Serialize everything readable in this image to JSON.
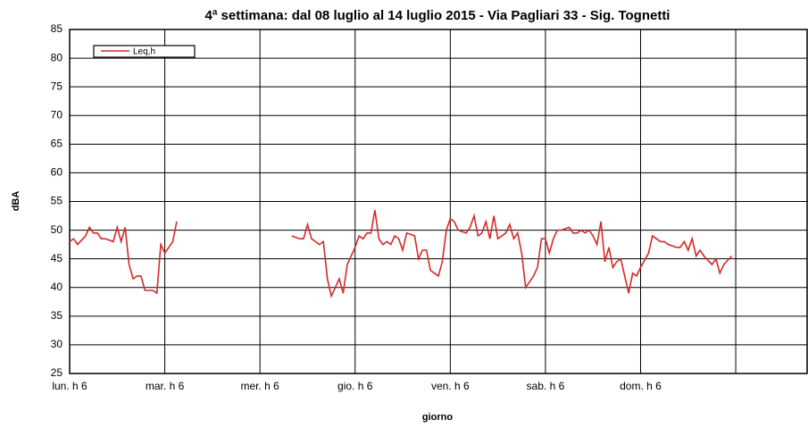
{
  "chart_data": {
    "type": "line",
    "title": "4ª settimana: dal 08 luglio al 14 luglio 2015 - Via Pagliari 33 - Sig. Tognetti",
    "x_label": "giorno",
    "y_label": "dBA",
    "xlim": [
      0,
      186
    ],
    "xticks": [
      {
        "value": 0,
        "label": "lun. h 6"
      },
      {
        "value": 24,
        "label": "mar. h 6"
      },
      {
        "value": 48,
        "label": "mer. h 6"
      },
      {
        "value": 72,
        "label": "gio. h 6"
      },
      {
        "value": 96,
        "label": "ven. h 6"
      },
      {
        "value": 120,
        "label": "sab. h 6"
      },
      {
        "value": 144,
        "label": "dom. h 6"
      },
      {
        "value": 168,
        "label": null
      }
    ],
    "ylim": [
      25,
      85
    ],
    "yticks": [
      25,
      30,
      35,
      40,
      45,
      50,
      55,
      60,
      65,
      70,
      75,
      80,
      85
    ],
    "grid": true,
    "legend": "upper left",
    "series": [
      {
        "name": "Leq,h",
        "color": "#d42a2a",
        "x": [
          0,
          1,
          2,
          4,
          5,
          6,
          7,
          8,
          9,
          11,
          12,
          13,
          14,
          15,
          16,
          17,
          18,
          19,
          21,
          22,
          23,
          24,
          26,
          27,
          40,
          56,
          58,
          59,
          60,
          61,
          63,
          64,
          65,
          66,
          68,
          69,
          70,
          72,
          73,
          74,
          75,
          76,
          77,
          78,
          79,
          80,
          81,
          82,
          83,
          84,
          85,
          87,
          88,
          89,
          90,
          91,
          92,
          93,
          94,
          95,
          96,
          97,
          98,
          100,
          101,
          102,
          103,
          104,
          105,
          106,
          107,
          108,
          110,
          111,
          112,
          113,
          114,
          115,
          117,
          118,
          119,
          120,
          121,
          122,
          123,
          124,
          126,
          127,
          128,
          129,
          130,
          131,
          132,
          133,
          134,
          135,
          136,
          137,
          138,
          139,
          140,
          141,
          142,
          143,
          144,
          146,
          147,
          148,
          149,
          150,
          151,
          153,
          154,
          155,
          156,
          157,
          158,
          159,
          160,
          162,
          163,
          164,
          165,
          167
        ],
        "values": [
          48,
          48.5,
          47.5,
          49,
          50.5,
          49.5,
          49.5,
          48.5,
          48.5,
          48,
          50.5,
          48,
          50.5,
          44,
          41.5,
          42,
          42,
          39.5,
          39.5,
          39,
          47.5,
          46,
          48,
          51.5,
          null,
          49,
          48.5,
          48.5,
          51,
          48.5,
          47.5,
          48,
          41.5,
          38.5,
          41.5,
          39,
          44,
          47,
          49,
          48.5,
          49.5,
          49.5,
          53.5,
          48.5,
          47.5,
          48,
          47.5,
          49,
          48.5,
          46.5,
          49.5,
          49,
          45,
          46.5,
          46.5,
          43,
          42.5,
          42,
          44.5,
          50,
          52,
          51.5,
          50,
          49.5,
          50.5,
          52.5,
          49,
          49.5,
          51.5,
          48.5,
          52.5,
          48.5,
          49.5,
          51,
          48.5,
          49.5,
          46,
          40,
          42,
          43.5,
          48.5,
          48.5,
          46,
          48.5,
          50,
          50,
          50.5,
          49.5,
          49.5,
          50,
          49.5,
          50,
          49,
          47.5,
          51.5,
          44.5,
          47,
          43.5,
          44.5,
          45,
          42,
          39,
          42.5,
          42,
          43.5,
          46,
          49,
          48.5,
          48,
          48,
          47.5,
          47,
          47,
          48,
          46.5,
          48.5,
          45.5,
          46.5,
          45.5,
          44,
          45,
          42.5,
          44,
          45.5
        ]
      }
    ]
  }
}
